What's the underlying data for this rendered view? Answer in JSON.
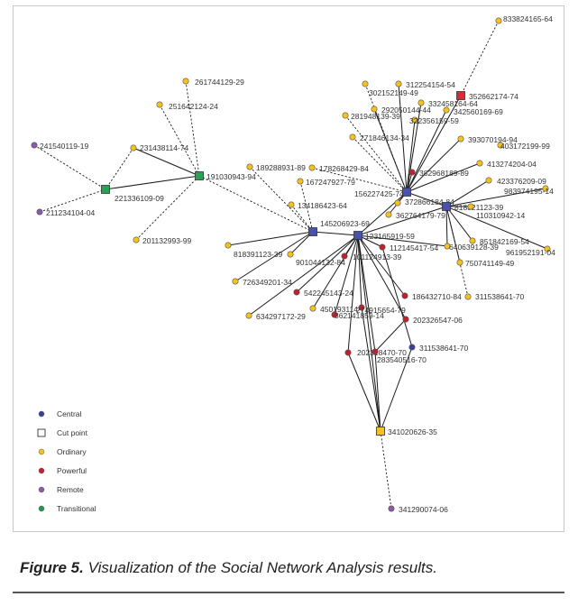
{
  "caption": {
    "label": "Figure 5.",
    "text": " Visualization of the Social Network Analysis results."
  },
  "colors": {
    "Central": "#3a3f9a",
    "Ordinary": "#f4c21b",
    "Powerful": "#c3202d",
    "Remote": "#8a5aa6",
    "Transitional": "#1f9a4a",
    "cut_fill_Central": "#4a50b0",
    "cut_fill_Ordinary": "#f4c21b",
    "cut_fill_Powerful": "#d92a35",
    "cut_fill_Transitional": "#27a352"
  },
  "legend": [
    {
      "label": "Central",
      "shape": "circle",
      "type": "Central"
    },
    {
      "label": "Cut point",
      "shape": "square",
      "type": "Cut"
    },
    {
      "label": "Ordinary",
      "shape": "circle",
      "type": "Ordinary"
    },
    {
      "label": "Powerful",
      "shape": "circle",
      "type": "Powerful"
    },
    {
      "label": "Remote",
      "shape": "circle",
      "type": "Remote"
    },
    {
      "label": "Transitional",
      "shape": "circle",
      "type": "Transitional"
    }
  ],
  "nodes": [
    {
      "id": "833824165-64",
      "type": "Ordinary",
      "cut": false
    },
    {
      "id": "261744129-29",
      "type": "Ordinary",
      "cut": false
    },
    {
      "id": "251642124-24",
      "type": "Ordinary",
      "cut": false
    },
    {
      "id": "241540119-19",
      "type": "Remote",
      "cut": false
    },
    {
      "id": "231438114-74",
      "type": "Ordinary",
      "cut": false
    },
    {
      "id": "191030943-94",
      "type": "Transitional",
      "cut": true
    },
    {
      "id": "221336109-09",
      "type": "Transitional",
      "cut": true
    },
    {
      "id": "211234104-04",
      "type": "Remote",
      "cut": false
    },
    {
      "id": "201132993-99",
      "type": "Ordinary",
      "cut": false
    },
    {
      "id": "312254154-54",
      "type": "Ordinary",
      "cut": false
    },
    {
      "id": "302152149-49",
      "type": "Ordinary",
      "cut": false
    },
    {
      "id": "352662174-74",
      "type": "Powerful",
      "cut": true
    },
    {
      "id": "332458164-64",
      "type": "Ordinary",
      "cut": false
    },
    {
      "id": "292050144-44",
      "type": "Ordinary",
      "cut": false
    },
    {
      "id": "342560169-69",
      "type": "Ordinary",
      "cut": false
    },
    {
      "id": "281948139-39",
      "type": "Ordinary",
      "cut": false
    },
    {
      "id": "322356159-59",
      "type": "Ordinary",
      "cut": false
    },
    {
      "id": "271846134-34",
      "type": "Ordinary",
      "cut": false
    },
    {
      "id": "393070194-94",
      "type": "Ordinary",
      "cut": false
    },
    {
      "id": "403172199-99",
      "type": "Ordinary",
      "cut": false
    },
    {
      "id": "189288931-89",
      "type": "Ordinary",
      "cut": false
    },
    {
      "id": "178268429-84",
      "type": "Ordinary",
      "cut": false
    },
    {
      "id": "382968189-89",
      "type": "Powerful",
      "cut": false
    },
    {
      "id": "413274204-04",
      "type": "Ordinary",
      "cut": false
    },
    {
      "id": "167247927-79",
      "type": "Ordinary",
      "cut": false
    },
    {
      "id": "156227425-74",
      "type": "Central",
      "cut": true
    },
    {
      "id": "423376209-09",
      "type": "Ordinary",
      "cut": false
    },
    {
      "id": "983974195-14",
      "type": "Ordinary",
      "cut": false
    },
    {
      "id": "372866184-84",
      "type": "Ordinary",
      "cut": false
    },
    {
      "id": "134186423-64",
      "type": "Ordinary",
      "cut": false
    },
    {
      "id": "818321123-39",
      "type": "Central",
      "cut": true
    },
    {
      "id": "110310942-14",
      "type": "Ordinary",
      "cut": false
    },
    {
      "id": "362764179-79",
      "type": "Ordinary",
      "cut": false
    },
    {
      "id": "145206923-69",
      "type": "Central",
      "cut": true
    },
    {
      "id": "123165919-59",
      "type": "Central",
      "cut": true
    },
    {
      "id": "851842169-54",
      "type": "Ordinary",
      "cut": false
    },
    {
      "id": "961952191-04",
      "type": "Ordinary",
      "cut": false
    },
    {
      "id": "112145417-54",
      "type": "Powerful",
      "cut": false
    },
    {
      "id": "640639128-39",
      "type": "Ordinary",
      "cut": false
    },
    {
      "id": "818391123-39",
      "type": "Ordinary",
      "cut": false
    },
    {
      "id": "901044132-84",
      "type": "Ordinary",
      "cut": false
    },
    {
      "id": "101124913-39",
      "type": "Powerful",
      "cut": false
    },
    {
      "id": "750741149-49",
      "type": "Ordinary",
      "cut": false
    },
    {
      "id": "726349201-34",
      "type": "Ordinary",
      "cut": false
    },
    {
      "id": "311538641-70",
      "type": "Ordinary",
      "cut": false
    },
    {
      "id": "542245143-24",
      "type": "Powerful",
      "cut": false
    },
    {
      "id": "186432710-84",
      "type": "Powerful",
      "cut": false
    },
    {
      "id": "450193114-",
      "type": "Ordinary",
      "cut": false
    },
    {
      "id": "274915654-79",
      "type": "Powerful",
      "cut": false
    },
    {
      "id": "634297172-29",
      "type": "Ordinary",
      "cut": false
    },
    {
      "id": "362141859-14",
      "type": "Powerful",
      "cut": false
    },
    {
      "id": "202326547-06",
      "type": "Powerful",
      "cut": false
    },
    {
      "id": "202318470-70",
      "type": "Powerful",
      "cut": false
    },
    {
      "id": "283540516-70",
      "type": "Powerful",
      "cut": false
    },
    {
      "id": "311538641-70",
      "type": "Central",
      "cut": false,
      "key": "311538641-70b"
    },
    {
      "id": "341020626-35",
      "type": "Ordinary",
      "cut": true
    },
    {
      "id": "341290074-06",
      "type": "Remote",
      "cut": false
    }
  ]
}
